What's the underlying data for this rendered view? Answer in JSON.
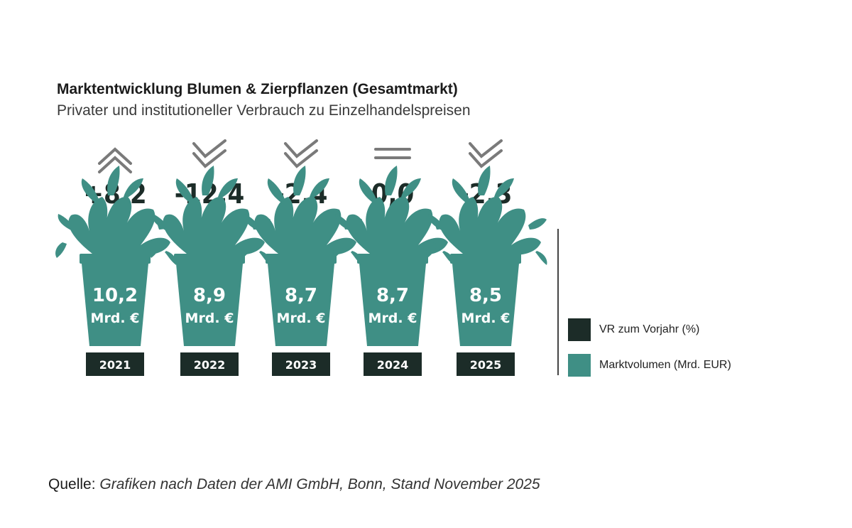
{
  "colors": {
    "teal": "#3f8f85",
    "dark": "#1c2c28",
    "arrow_gray": "#7a7a7a"
  },
  "header": {
    "title": "Marktentwicklung Blumen & Zierpflanzen (Gesamtmarkt)",
    "subtitle": "Privater und institutioneller Verbrauch zu Einzelhandelspreisen"
  },
  "chart_data": {
    "type": "bar",
    "categories": [
      "2021",
      "2022",
      "2023",
      "2024",
      "2025"
    ],
    "series": [
      {
        "name": "VR zum Vorjahr (%)",
        "values": [
          8.2,
          -12.4,
          -2.4,
          0.0,
          -2.3
        ],
        "labels": [
          "+8,2",
          "-12,4",
          "-2,4",
          "0,0",
          "-2,3"
        ],
        "trend_icons": [
          "up-chevrons-icon",
          "down-chevrons-icon",
          "down-chevrons-icon",
          "equal-icon",
          "down-chevrons-icon"
        ]
      },
      {
        "name": "Marktvolumen (Mrd. EUR)",
        "values": [
          10.2,
          8.9,
          8.7,
          8.7,
          8.5
        ],
        "labels": [
          "10,2",
          "8,9",
          "8,7",
          "8,7",
          "8,5"
        ],
        "unit": "Mrd. €"
      }
    ],
    "legend": [
      "VR zum Vorjahr (%)",
      "Marktvolumen (Mrd. EUR)"
    ],
    "legend_position": "right"
  },
  "legend": {
    "items": [
      {
        "label": "VR zum Vorjahr (%)",
        "color": "#1c2c28"
      },
      {
        "label": "Marktvolumen (Mrd. EUR)",
        "color": "#3f8f85"
      }
    ]
  },
  "source": {
    "label": "Quelle:",
    "text": "Grafiken nach Daten der AMI GmbH, Bonn, Stand November 2025"
  }
}
